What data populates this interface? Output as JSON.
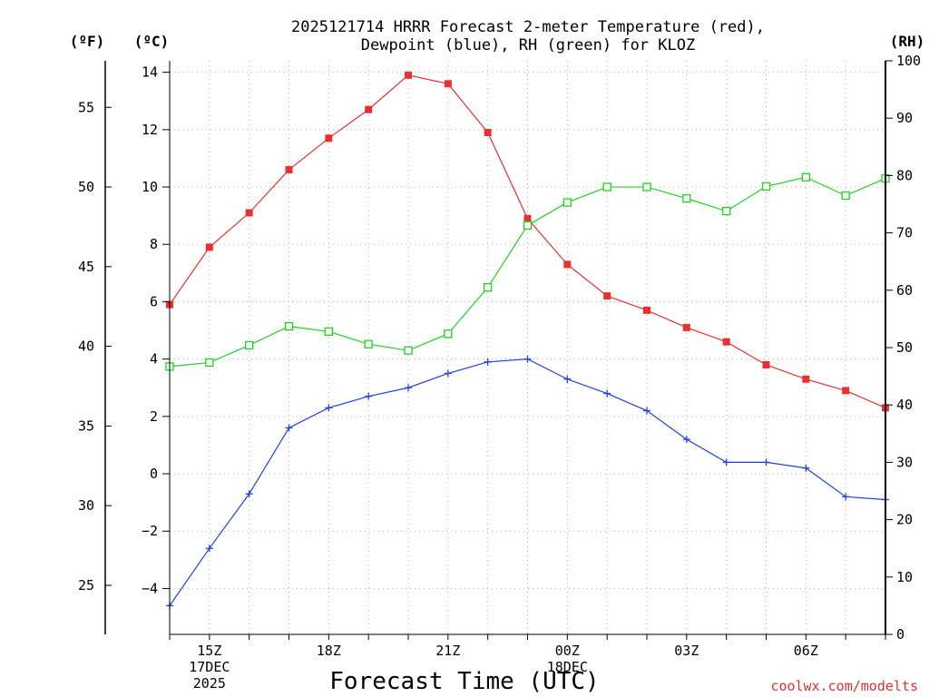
{
  "chart_data": {
    "type": "line",
    "title_line1": "2025121714 HRRR Forecast 2-meter Temperature (red),",
    "title_line2": "Dewpoint (blue), RH (green) for KLOZ",
    "xlabel": "Forecast Time (UTC)",
    "credit": "coolwx.com/modelts",
    "unit_left_f": "(ºF)",
    "unit_left_c": "(ºC)",
    "unit_right_rh": "(RH)",
    "x": [
      14,
      15,
      16,
      17,
      18,
      19,
      20,
      21,
      22,
      23,
      24,
      25,
      26,
      27,
      28,
      29,
      30,
      31,
      32
    ],
    "xlim": [
      14,
      32
    ],
    "x_ticks": [
      {
        "x": 15,
        "lines": [
          "15Z",
          "17DEC",
          "2025"
        ]
      },
      {
        "x": 18,
        "lines": [
          "18Z"
        ]
      },
      {
        "x": 21,
        "lines": [
          "21Z"
        ]
      },
      {
        "x": 24,
        "lines": [
          "00Z",
          "18DEC"
        ]
      },
      {
        "x": 27,
        "lines": [
          "03Z"
        ]
      },
      {
        "x": 30,
        "lines": [
          "06Z"
        ]
      }
    ],
    "x_grid": [
      15,
      16,
      17,
      18,
      19,
      20,
      21,
      22,
      23,
      24,
      25,
      26,
      27,
      28,
      29,
      30,
      31
    ],
    "ylim_c": [
      -5.6,
      14.4
    ],
    "y_ticks_c": [
      -4,
      -2,
      0,
      2,
      4,
      6,
      8,
      10,
      12,
      14
    ],
    "y_ticks_c_labels": [
      "−4",
      "−2",
      "0",
      "2",
      "4",
      "6",
      "8",
      "10",
      "12",
      "14"
    ],
    "y_ticks_f": [
      25,
      30,
      35,
      40,
      45,
      50,
      55
    ],
    "y_ticks_f_labels": [
      "25",
      "30",
      "35",
      "40",
      "45",
      "50",
      "55"
    ],
    "ylim_rh": [
      0,
      100
    ],
    "y_ticks_rh": [
      0,
      10,
      20,
      30,
      40,
      50,
      60,
      70,
      80,
      90,
      100
    ],
    "y_ticks_rh_labels": [
      "0",
      "10",
      "20",
      "30",
      "40",
      "50",
      "60",
      "70",
      "80",
      "90",
      "100"
    ],
    "series": [
      {
        "name": "Temperature",
        "color": "#e83030",
        "marker": "filled-square",
        "axis": "c",
        "values": [
          5.9,
          7.9,
          9.1,
          10.6,
          11.7,
          12.7,
          13.9,
          13.6,
          11.9,
          8.9,
          7.3,
          6.2,
          5.7,
          5.1,
          4.6,
          3.8,
          3.3,
          2.9,
          2.3
        ]
      },
      {
        "name": "Dewpoint",
        "color": "#2040e0",
        "marker": "plus",
        "axis": "c",
        "values": [
          -4.6,
          -2.6,
          -0.7,
          1.6,
          2.3,
          2.7,
          3.0,
          3.5,
          3.9,
          4.0,
          3.3,
          2.8,
          2.2,
          1.2,
          0.4,
          0.4,
          0.2,
          -0.8,
          -0.9
        ]
      },
      {
        "name": "RH",
        "color": "#20d020",
        "marker": "open-square",
        "axis": "rh",
        "values": [
          46.7,
          47.4,
          50.4,
          53.7,
          52.8,
          50.6,
          49.5,
          52.4,
          60.5,
          71.3,
          75.3,
          78.0,
          78.0,
          76.0,
          73.8,
          78.1,
          79.7,
          76.5,
          79.5
        ]
      }
    ]
  }
}
